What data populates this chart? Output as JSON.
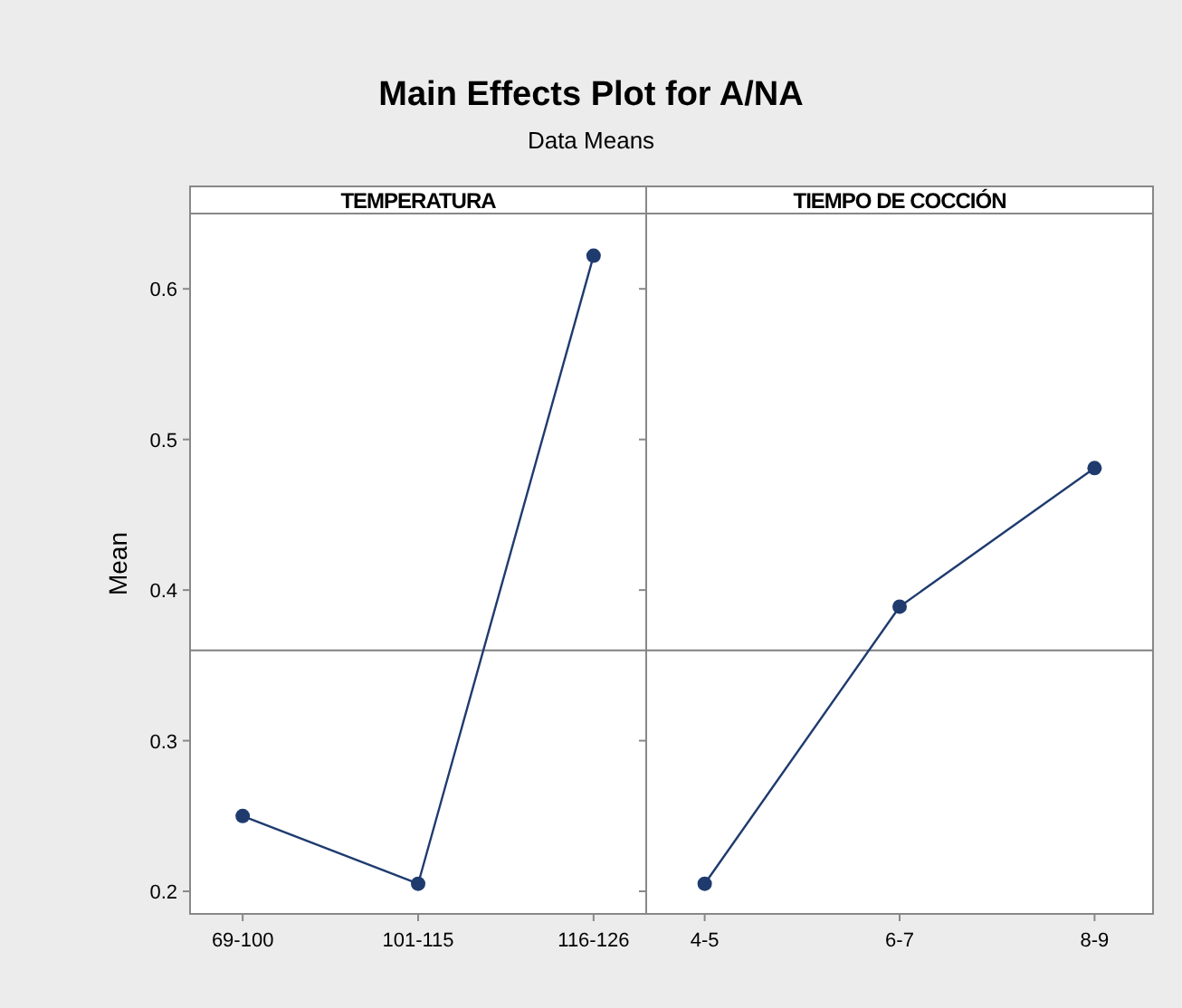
{
  "chart_data": [
    {
      "type": "line",
      "title": "TEMPERATURA",
      "ylabel": "Mean",
      "annotations": [
        "Main Effects Plot for A/NA",
        "Data Means"
      ],
      "categories": [
        "69-100",
        "101-115",
        "116-126"
      ],
      "series": [
        {
          "color": "#1f3b6e",
          "values": [
            0.25,
            0.205,
            0.622
          ]
        }
      ],
      "ylim": [
        0.185,
        0.65
      ],
      "yticks": [
        0.2,
        0.3,
        0.4,
        0.5,
        0.6
      ],
      "marker": "circle",
      "line_style": "solid",
      "grid": false,
      "ref_lines": [
        {
          "axis": "y",
          "value": 0.36,
          "color": "#808080"
        }
      ]
    },
    {
      "type": "line",
      "title": "TIEMPO DE COCCIÓN",
      "categories": [
        "4-5",
        "6-7",
        "8-9"
      ],
      "series": [
        {
          "color": "#1f3b6e",
          "values": [
            0.205,
            0.389,
            0.481
          ]
        }
      ],
      "ylim": [
        0.185,
        0.65
      ],
      "yticks": [
        0.2,
        0.3,
        0.4,
        0.5,
        0.6
      ],
      "tick_labels": "x",
      "marker": "circle",
      "line_style": "solid",
      "grid": false,
      "ref_lines": [
        {
          "axis": "y",
          "value": 0.36,
          "color": "#808080"
        }
      ]
    }
  ]
}
